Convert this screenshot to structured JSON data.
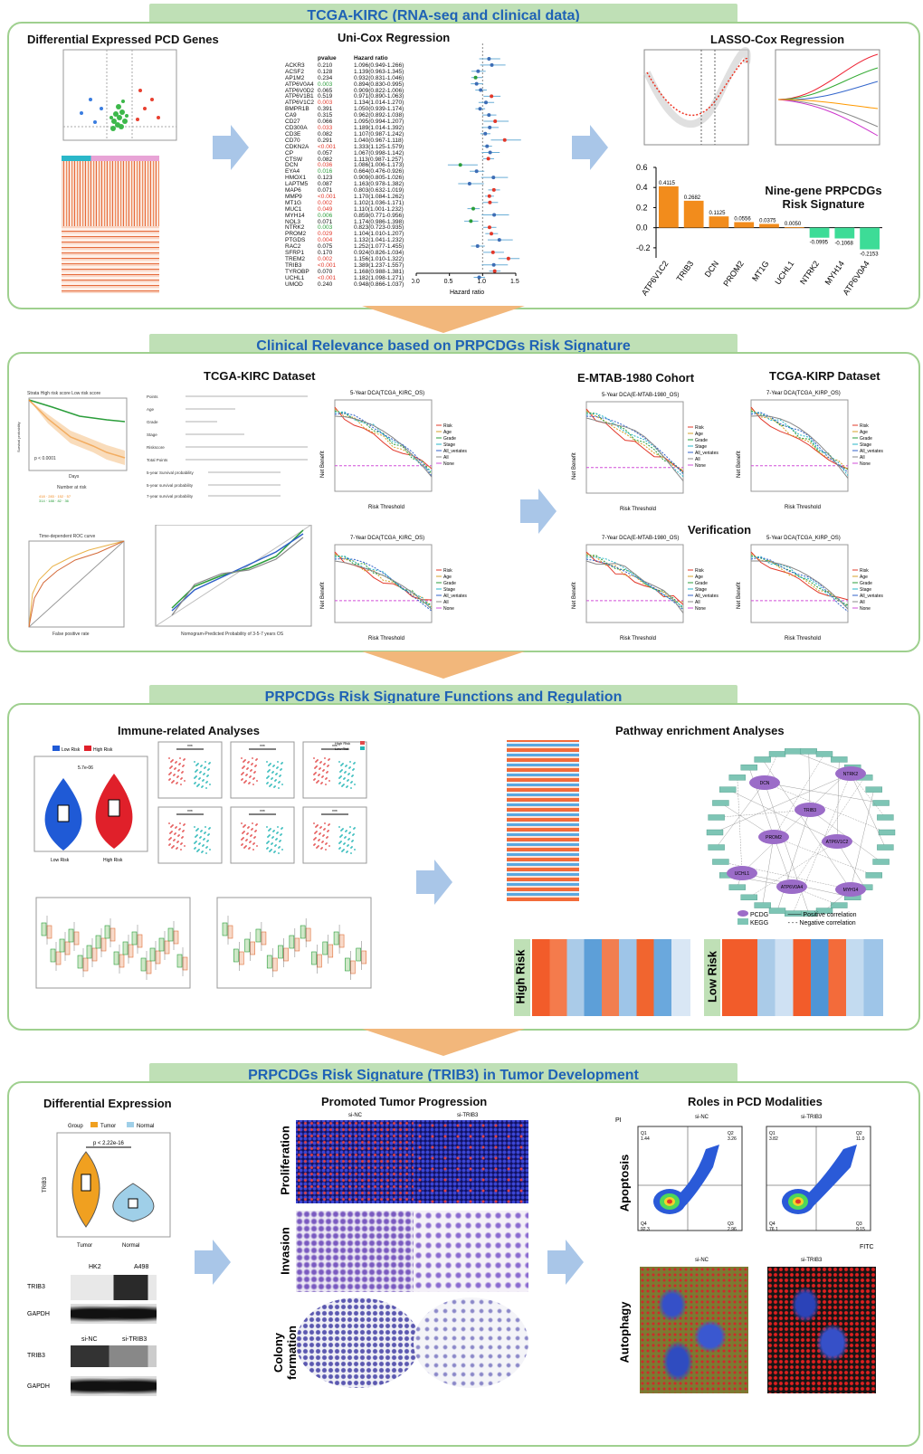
{
  "sections": [
    {
      "banner": "TCGA-KIRC (RNA-seq and clinical data)",
      "titles": [
        "Differential Expressed PCD Genes",
        "Uni-Cox Regression",
        "LASSO-Cox Regression",
        "Nine-gene PRPCDGs Risk Signature"
      ]
    },
    {
      "banner": "Clinical Relevance based on PRPCDGs Risk Signature",
      "titles": [
        "TCGA-KIRC Dataset",
        "E-MTAB-1980 Cohort",
        "TCGA-KIRP Dataset",
        "Verification"
      ]
    },
    {
      "banner": "PRPCDGs Risk Signature Functions and Regulation",
      "titles": [
        "Immune-related Analyses",
        "Pathway enrichment Analyses"
      ]
    },
    {
      "banner": "PRPCDGs Risk Signature (TRIB3) in Tumor Development",
      "titles": [
        "Differential Expression",
        "Promoted Tumor Progression",
        "Roles in PCD Modalities"
      ]
    }
  ],
  "unicox": {
    "col_pvalue": "pvalue",
    "col_hr": "Hazard ratio",
    "axis_label": "Hazard ratio",
    "axis_ticks": [
      "0.0",
      "0.5",
      "1.0",
      "1.5"
    ],
    "rows": [
      [
        "ACKR3",
        "0.210",
        "1.096(0.949-1.266)"
      ],
      [
        "ACSF2",
        "0.128",
        "1.139(0.963-1.345)"
      ],
      [
        "AP1M2",
        "0.234",
        "0.932(0.831-1.046)"
      ],
      [
        "ATP6V0A4",
        "0.003",
        "0.894(0.830-0.995)"
      ],
      [
        "ATP6V0D2",
        "0.065",
        "0.909(0.822-1.006)"
      ],
      [
        "ATP6V1B1",
        "0.519",
        "0.971(0.890-1.063)"
      ],
      [
        "ATP6V1C2",
        "0.003",
        "1.134(1.014-1.270)"
      ],
      [
        "BMPR1B",
        "0.391",
        "1.050(0.939-1.174)"
      ],
      [
        "CA9",
        "0.315",
        "0.962(0.892-1.038)"
      ],
      [
        "CD27",
        "0.066",
        "1.095(0.994-1.207)"
      ],
      [
        "CD300A",
        "0.033",
        "1.189(1.014-1.392)"
      ],
      [
        "CD3E",
        "0.082",
        "1.107(0.987-1.242)"
      ],
      [
        "CD70",
        "0.291",
        "1.040(0.967-1.118)"
      ],
      [
        "CDKN2A",
        "<0.001",
        "1.333(1.125-1.579)"
      ],
      [
        "CP",
        "0.057",
        "1.067(0.998-1.142)"
      ],
      [
        "CTSW",
        "0.082",
        "1.113(0.987-1.257)"
      ],
      [
        "DCN",
        "0.036",
        "1.086(1.006-1.173)"
      ],
      [
        "EYA4",
        "0.016",
        "0.664(0.476-0.926)"
      ],
      [
        "HMOX1",
        "0.123",
        "0.909(0.805-1.026)"
      ],
      [
        "LAPTM5",
        "0.087",
        "1.163(0.978-1.382)"
      ],
      [
        "MAP6",
        "0.071",
        "0.803(0.632-1.019)"
      ],
      [
        "MMP9",
        "<0.001",
        "1.170(1.084-1.262)"
      ],
      [
        "MT1G",
        "0.002",
        "1.102(1.036-1.171)"
      ],
      [
        "MUC1",
        "0.049",
        "1.110(1.001-1.232)"
      ],
      [
        "MYH14",
        "0.006",
        "0.859(0.771-0.956)"
      ],
      [
        "NOL3",
        "0.071",
        "1.174(0.986-1.398)"
      ],
      [
        "NTRK2",
        "0.003",
        "0.823(0.723-0.935)"
      ],
      [
        "PROM2",
        "0.029",
        "1.104(1.010-1.207)"
      ],
      [
        "PTGDS",
        "0.004",
        "1.132(1.041-1.232)"
      ],
      [
        "RAC2",
        "0.075",
        "1.252(1.077-1.455)"
      ],
      [
        "SFRP1",
        "0.170",
        "0.924(0.826-1.034)"
      ],
      [
        "TREM2",
        "0.002",
        "1.156(1.010-1.322)"
      ],
      [
        "TRIB3",
        "<0.001",
        "1.389(1.237-1.557)"
      ],
      [
        "TYROBP",
        "0.070",
        "1.168(0.988-1.381)"
      ],
      [
        "UCHL1",
        "<0.001",
        "1.182(1.098-1.271)"
      ],
      [
        "UMOD",
        "0.240",
        "0.948(0.866-1.037)"
      ]
    ]
  },
  "chart_data": {
    "type": "bar",
    "title": "Nine-gene PRPCDGs Risk Signature",
    "categories": [
      "ATP6V1C2",
      "TRIB3",
      "DCN",
      "PROM2",
      "MT1G",
      "UCHL1",
      "NTRK2",
      "MYH14",
      "ATP6V0A4"
    ],
    "values": [
      0.4115,
      0.2682,
      0.1125,
      0.0556,
      0.0375,
      0.005,
      -0.0995,
      -0.1068,
      -0.2153
    ],
    "value_labels": [
      "0.4115",
      "0.2682",
      "0.1125",
      "0.0556",
      "0.0375",
      "0.0050",
      "-0.0995",
      "-0.1068",
      "-0.2153"
    ],
    "ylim": [
      -0.3,
      0.6
    ],
    "yticks": [
      "0.6",
      "0.4",
      "0.2",
      "0.0",
      "-0.2"
    ],
    "colors": {
      "positive": "#f28c1c",
      "negative": "#3ddc97"
    }
  },
  "dca_titles": {
    "kirc5": "5-Year DCA(TCGA_KIRC_OS)",
    "kirc7": "7-Year DCA(TCGA_KIRC_OS)",
    "emtab5": "5-Year DCA(E-MTAB-1980_OS)",
    "emtab7": "7-Year DCA(E-MTAB-1980_OS)",
    "kirp7": "7-Year DCA(TCGA_KIRP_OS)",
    "kirp5": "5-Year DCA(TCGA_KIRP_OS)",
    "xlabel": "Risk Threshold",
    "ylabel": "Net Benefit",
    "legend": [
      "Risk",
      "Age",
      "Grade",
      "Stage",
      "All_veriates",
      "All",
      "None"
    ]
  },
  "survival": {
    "legend": "Strata  High risk score  Low risk score",
    "p": "p < 0.0001",
    "xlabel": "Days",
    "ylabel": "Survival probability",
    "risk_table": "Number at risk"
  },
  "roc": {
    "title": "Time-dependent ROC curve",
    "xlabel": "False positive rate",
    "ylabel": "True positive rate"
  },
  "calib": {
    "xlabel": "Nomogram-Predicted Probability of 3-5-7 years OS"
  },
  "immune": {
    "violin_legend": [
      "Low Risk",
      "High Risk"
    ],
    "violin_p": "5.7e-06",
    "violin_ylabel": "ImmuneScore",
    "xcats": [
      "Low Risk",
      "High Risk"
    ],
    "risk_legend": [
      "High Risk",
      "Low Risk"
    ]
  },
  "network_legend": {
    "pcdg": "PCDG",
    "kegg": "KEGG",
    "pos": "Positive correlation",
    "neg": "Negative correlation"
  },
  "network_nodes": [
    "DCN",
    "NTRK2",
    "TRIB3",
    "PROM2",
    "ATP6V1C2",
    "UCHL1",
    "ATP6V0A4",
    "MYH14"
  ],
  "heatmap_labels": {
    "high": "High Risk",
    "low": "Low Risk"
  },
  "trib3": {
    "legend_group": "Group",
    "legend_tumor": "Tumor",
    "legend_normal": "Normal",
    "p": "p < 2.22e-16",
    "ylabel": "TRIB3",
    "xcats": [
      "Tumor",
      "Normal"
    ],
    "blot1_cols": [
      "HK2",
      "A498"
    ],
    "blot2_cols": [
      "si-NC",
      "si-TRIB3"
    ],
    "blot_rows": [
      "TRIB3",
      "GAPDH"
    ]
  },
  "assays": {
    "rows": [
      "Proliferation",
      "Invasion",
      "Colony formation"
    ],
    "cols": [
      "si-NC",
      "si-TRIB3"
    ]
  },
  "pcd": {
    "rows": [
      "Apoptosis",
      "Autophagy"
    ],
    "cols": [
      "si-NC",
      "si-TRIB3"
    ],
    "flow_x": "FITC",
    "flow_y": "PI",
    "q_nc": [
      "Q1",
      "Q2",
      "Q3",
      "Q4",
      "1.44",
      "3.26",
      "2.96",
      "92.3"
    ],
    "q_si": [
      "Q1",
      "Q2",
      "Q3",
      "Q4",
      "3.82",
      "11.0",
      "9.15",
      "76.1"
    ]
  }
}
